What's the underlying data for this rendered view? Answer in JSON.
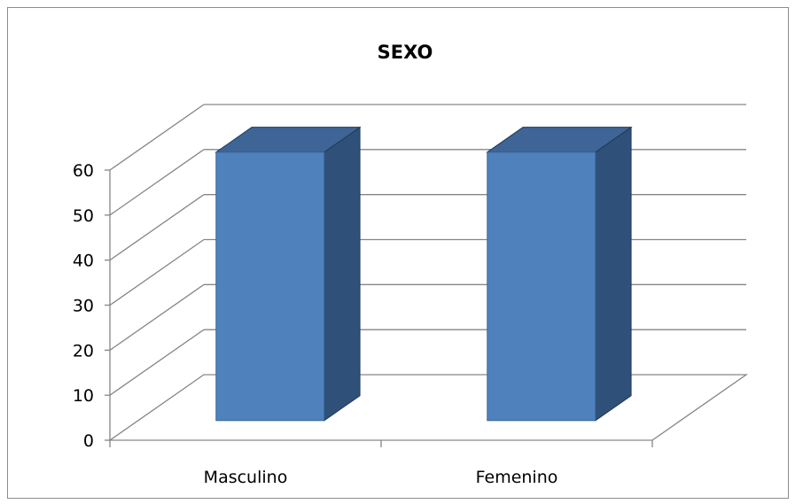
{
  "chart_data": {
    "type": "bar",
    "title": "SEXO",
    "categories": [
      "Masculino",
      "Femenino"
    ],
    "series": [
      {
        "values": [
          60,
          60
        ]
      }
    ],
    "ylim": [
      0,
      60
    ],
    "yticks": [
      "0",
      "10",
      "20",
      "30",
      "40",
      "50",
      "60"
    ],
    "grid": true,
    "legend": "none",
    "style": "3d-column"
  },
  "colors": {
    "bar_front": "#4f81bd",
    "bar_side": "#2f5079",
    "bar_top": "#3e6596",
    "grid": "#868686",
    "frame": "#8c8c8c"
  }
}
